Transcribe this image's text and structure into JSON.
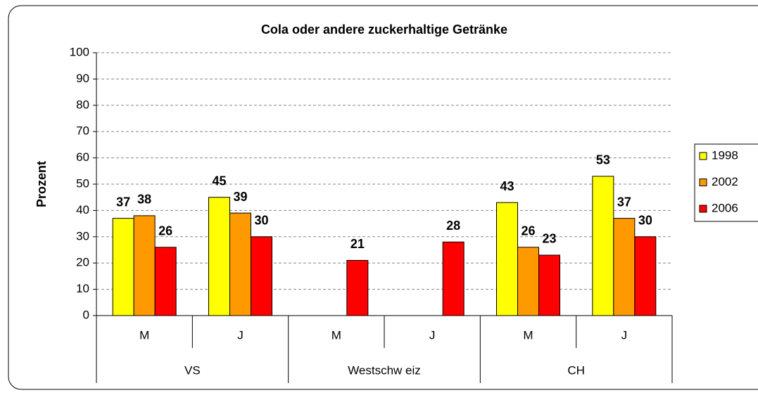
{
  "chart_data": {
    "type": "bar",
    "title": "Cola oder andere zuckerhaltige Getränke",
    "y_label": "Prozent",
    "categories": [
      "M",
      "J",
      "M",
      "J",
      "M",
      "J"
    ],
    "group_labels": [
      "VS",
      "Westschw eiz",
      "CH"
    ],
    "series": [
      {
        "name": "1998",
        "color": "#ffff00",
        "values": [
          37,
          45,
          null,
          null,
          43,
          53
        ]
      },
      {
        "name": "2002",
        "color": "#ff9900",
        "values": [
          38,
          39,
          null,
          null,
          26,
          37
        ]
      },
      {
        "name": "2006",
        "color": "#ff0000",
        "values": [
          26,
          30,
          21,
          28,
          23,
          30
        ]
      }
    ],
    "ylim": [
      0,
      100
    ],
    "yticks": [
      0,
      10,
      20,
      30,
      40,
      50,
      60,
      70,
      80,
      90,
      100
    ],
    "grid": true,
    "legend": "right"
  }
}
